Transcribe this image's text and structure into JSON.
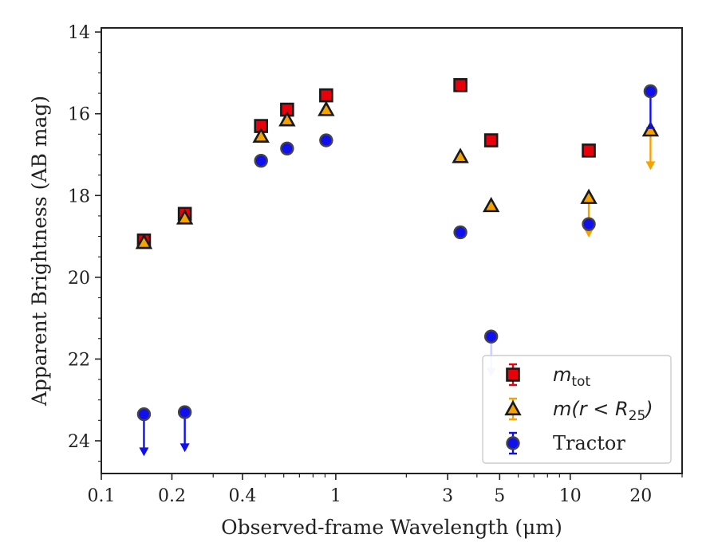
{
  "chart_data": {
    "type": "scatter",
    "xscale": "log",
    "yinverted": true,
    "xlim": [
      0.1,
      30
    ],
    "ylim": [
      24.8,
      13.9
    ],
    "xlabel": "Observed-frame Wavelength (μm)",
    "ylabel": "Apparent Brightness (AB mag)",
    "x_ticks": [
      0.1,
      0.2,
      0.4,
      1,
      3,
      5,
      10,
      20
    ],
    "x_tick_labels": [
      "0.1",
      "0.2",
      "0.4",
      "1",
      "3",
      "5",
      "10",
      "20"
    ],
    "y_ticks": [
      14,
      16,
      18,
      20,
      22,
      24
    ],
    "y_tick_labels": [
      "14",
      "16",
      "18",
      "20",
      "22",
      "24"
    ],
    "legend_position": "lower-right",
    "series": [
      {
        "name": "m_tot",
        "legend_main": "m",
        "legend_sub": "tot",
        "legend_tail": "",
        "marker": "square",
        "color": "#e8000b",
        "edge": "#1a1a1a",
        "points": [
          {
            "x": 0.152,
            "y": 19.1
          },
          {
            "x": 0.227,
            "y": 18.45
          },
          {
            "x": 0.48,
            "y": 16.3
          },
          {
            "x": 0.62,
            "y": 15.9
          },
          {
            "x": 0.91,
            "y": 15.55
          },
          {
            "x": 3.4,
            "y": 15.3
          },
          {
            "x": 4.6,
            "y": 16.65
          },
          {
            "x": 12.0,
            "y": 16.9
          }
        ]
      },
      {
        "name": "m(r<R25)",
        "legend_main": "m(r < R",
        "legend_sub": "25",
        "legend_tail": ")",
        "marker": "triangle",
        "color": "#f5a300",
        "edge": "#1a1a1a",
        "points": [
          {
            "x": 0.152,
            "y": 19.15
          },
          {
            "x": 0.227,
            "y": 18.55
          },
          {
            "x": 0.48,
            "y": 16.55
          },
          {
            "x": 0.62,
            "y": 16.15
          },
          {
            "x": 0.91,
            "y": 15.9
          },
          {
            "x": 3.4,
            "y": 17.05
          },
          {
            "x": 4.6,
            "y": 18.25
          },
          {
            "x": 12.0,
            "y": 18.05,
            "upper_limit_to": 18.95
          },
          {
            "x": 22.0,
            "y": 16.4,
            "upper_limit_to": 17.3
          }
        ]
      },
      {
        "name": "Tractor",
        "legend_main": "Tractor",
        "legend_sub": "",
        "legend_tail": "",
        "marker": "circle",
        "color": "#1010ee",
        "edge": "#444444",
        "points": [
          {
            "x": 0.152,
            "y": 23.35,
            "upper_limit_to": 24.3
          },
          {
            "x": 0.227,
            "y": 23.3,
            "upper_limit_to": 24.2
          },
          {
            "x": 0.48,
            "y": 17.15
          },
          {
            "x": 0.62,
            "y": 16.85
          },
          {
            "x": 0.91,
            "y": 16.65
          },
          {
            "x": 3.4,
            "y": 18.9
          },
          {
            "x": 4.6,
            "y": 21.45,
            "upper_limit_to": 22.35,
            "limit_color": "#c9d0ff"
          },
          {
            "x": 12.0,
            "y": 18.7
          },
          {
            "x": 22.0,
            "y": 15.45,
            "errbar_to": 16.35
          }
        ]
      }
    ]
  }
}
